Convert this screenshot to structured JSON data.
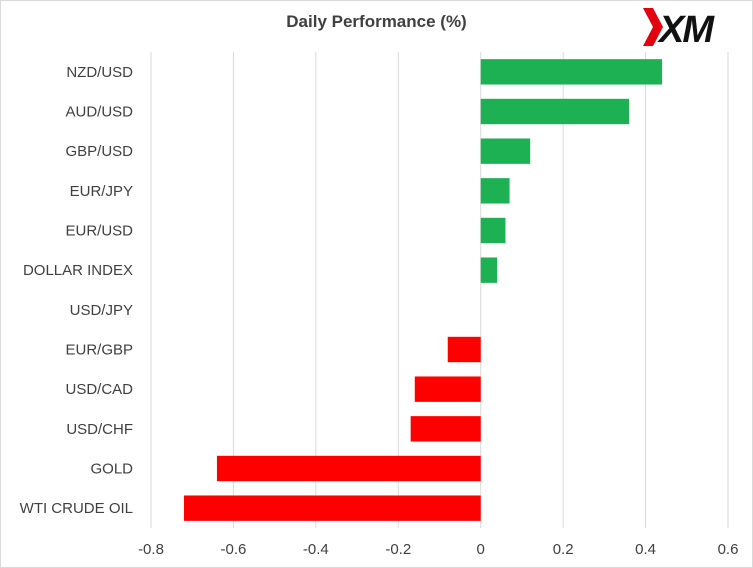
{
  "logo": {
    "text": "XM"
  },
  "colors": {
    "positive": "#1db154",
    "negative": "#ff0000",
    "grid": "#d9d9d9",
    "text": "#404040"
  },
  "chart_data": {
    "type": "bar",
    "orientation": "horizontal",
    "title": "Daily Performance (%)",
    "categories": [
      "NZD/USD",
      "AUD/USD",
      "GBP/USD",
      "EUR/JPY",
      "EUR/USD",
      "DOLLAR INDEX",
      "USD/JPY",
      "EUR/GBP",
      "USD/CAD",
      "USD/CHF",
      "GOLD",
      "WTI CRUDE OIL"
    ],
    "values": [
      0.44,
      0.36,
      0.12,
      0.07,
      0.06,
      0.04,
      0.0,
      -0.08,
      -0.16,
      -0.17,
      -0.64,
      -0.72
    ],
    "xlim": [
      -0.8,
      0.6
    ],
    "xticks": [
      -0.8,
      -0.6,
      -0.4,
      -0.2,
      0,
      0.2,
      0.4,
      0.6
    ],
    "xtick_labels": [
      "-0.8",
      "-0.6",
      "-0.4",
      "-0.2",
      "0",
      "0.2",
      "0.4",
      "0.6"
    ],
    "grid": "vertical",
    "legend": "none"
  }
}
